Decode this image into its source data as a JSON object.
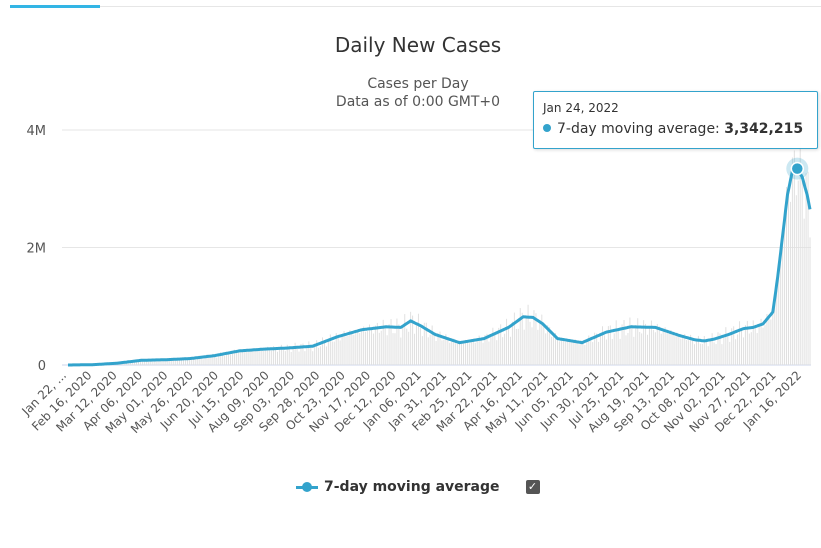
{
  "chart_data": {
    "type": "area",
    "title": "Daily New Cases",
    "subtitle_lines": [
      "Cases per Day",
      "Data as of 0:00 GMT+0"
    ],
    "ylim": [
      0,
      4000000
    ],
    "y_ticks": [
      0,
      2000000,
      4000000
    ],
    "y_tick_labels": [
      "0",
      "2M",
      "4M"
    ],
    "x_tick_labels": [
      "Jan 22, ...",
      "Feb 16, 2020",
      "Mar 12, 2020",
      "Apr 06, 2020",
      "May 01, 2020",
      "May 26, 2020",
      "Jun 20, 2020",
      "Jul 15, 2020",
      "Aug 09, 2020",
      "Sep 03, 2020",
      "Sep 28, 2020",
      "Oct 23, 2020",
      "Nov 17, 2020",
      "Dec 12, 2020",
      "Jan 06, 2021",
      "Jan 31, 2021",
      "Feb 25, 2021",
      "Mar 22, 2021",
      "Apr 16, 2021",
      "May 11, 2021",
      "Jun 05, 2021",
      "Jun 30, 2021",
      "Jul 25, 2021",
      "Aug 19, 2021",
      "Sep 13, 2021",
      "Oct 08, 2021",
      "Nov 02, 2021",
      "Nov 27, 2021",
      "Dec 22, 2021",
      "Jan 16, 2022"
    ],
    "series": [
      {
        "name": "7-day moving average",
        "color": "#33a3cc",
        "x_index": [
          0,
          25,
          50,
          75,
          100,
          125,
          150,
          175,
          200,
          225,
          250,
          275,
          300,
          325,
          340,
          350,
          360,
          375,
          400,
          425,
          450,
          465,
          475,
          485,
          500,
          525,
          550,
          575,
          600,
          625,
          640,
          650,
          660,
          675,
          690,
          700,
          710,
          720,
          725,
          730,
          735,
          740,
          745,
          750,
          755,
          758
        ],
        "values": [
          0,
          5000,
          30000,
          80000,
          90000,
          110000,
          160000,
          240000,
          270000,
          290000,
          320000,
          480000,
          600000,
          650000,
          640000,
          750000,
          670000,
          520000,
          380000,
          450000,
          640000,
          820000,
          810000,
          700000,
          450000,
          380000,
          560000,
          650000,
          640000,
          500000,
          430000,
          410000,
          440000,
          520000,
          620000,
          640000,
          700000,
          900000,
          1500000,
          2200000,
          2900000,
          3300000,
          3342215,
          3200000,
          2900000,
          2650000
        ]
      }
    ],
    "daily_bars_color": "#e0e0e0",
    "highlight": {
      "date": "Jan 24, 2022",
      "series": "7-day moving average",
      "value": 3342215
    },
    "legend": {
      "position": "bottom-center",
      "items": [
        "7-day moving average"
      ]
    }
  },
  "tooltip": {
    "date": "Jan 24, 2022",
    "series_label": "7-day moving average: ",
    "value_text": "3,342,215"
  },
  "legend": {
    "label": "7-day moving average",
    "checkbox_mark": "✓"
  }
}
